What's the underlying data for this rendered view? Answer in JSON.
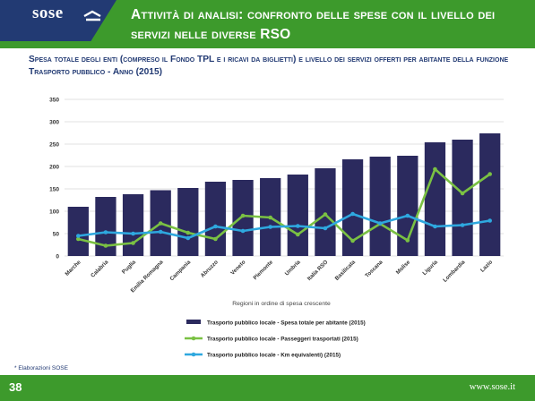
{
  "header": {
    "logo": "sose",
    "title": "Attività di analisi: confronto delle spese con il livello dei servizi nelle diverse RSO"
  },
  "subtitle": "Spesa totale degli enti (compreso il Fondo TPL e i ricavi da biglietti) e livello dei servizi offerti per abitante della funzione Trasporto pubblico - Anno (2015)",
  "chart_data": {
    "type": "bar",
    "categories": [
      "Marche",
      "Calabria",
      "Puglia",
      "Emilia Romagna",
      "Campania",
      "Abruzzo",
      "Veneto",
      "Piemonte",
      "Umbria",
      "Italia RSO",
      "Basilicata",
      "Toscana",
      "Molise",
      "Liguria",
      "Lombardia",
      "Lazio"
    ],
    "xlabel": "Regioni in ordine di spesa crescente",
    "ylim": [
      0,
      350
    ],
    "yticks": [
      0,
      50,
      100,
      150,
      200,
      250,
      300,
      350
    ],
    "grid": true,
    "legend_position": "bottom",
    "series": [
      {
        "name": "Trasporto pubblico locale - Spesa totale per abitante (2015)",
        "kind": "bar",
        "color": "#2b2a5e",
        "values": [
          110,
          132,
          138,
          147,
          152,
          166,
          170,
          174,
          182,
          196,
          216,
          222,
          224,
          254,
          260,
          274
        ]
      },
      {
        "name": "Trasporto pubblico locale - Passeggeri trasportati  (2015)",
        "kind": "line",
        "color": "#7ac143",
        "values": [
          38,
          23,
          29,
          73,
          52,
          38,
          90,
          86,
          48,
          93,
          34,
          72,
          35,
          194,
          140,
          183
        ]
      },
      {
        "name": "Trasporto pubblico locale - Km equivalenti) (2015)",
        "kind": "line",
        "color": "#2ea8df",
        "values": [
          45,
          53,
          50,
          54,
          40,
          66,
          56,
          65,
          67,
          62,
          94,
          73,
          90,
          66,
          69,
          79
        ]
      }
    ]
  },
  "note": "* Elaborazioni SOSE",
  "footer": {
    "page_number": "38",
    "site": "www.sose.it"
  }
}
